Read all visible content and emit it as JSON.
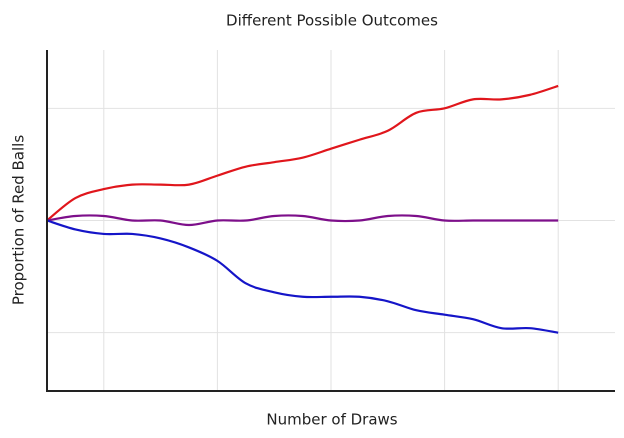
{
  "chart_data": {
    "type": "line",
    "title": "Different Possible Outcomes",
    "x_label": "Number of Draws",
    "y_label": "Proportion of Red Balls",
    "x": [
      0,
      0.5,
      1,
      1.5,
      2,
      2.5,
      3,
      3.5,
      4,
      4.5,
      5,
      5.5,
      6,
      6.5,
      7,
      7.5,
      8,
      8.5,
      9
    ],
    "series": [
      {
        "color": "#e0161c",
        "values": [
          0.5,
          0.55,
          0.57,
          0.58,
          0.58,
          0.58,
          0.6,
          0.62,
          0.63,
          0.64,
          0.66,
          0.68,
          0.7,
          0.74,
          0.75,
          0.77,
          0.77,
          0.78,
          0.8
        ]
      },
      {
        "color": "#7d0f8a",
        "values": [
          0.5,
          0.51,
          0.51,
          0.5,
          0.5,
          0.49,
          0.5,
          0.5,
          0.51,
          0.51,
          0.5,
          0.5,
          0.51,
          0.51,
          0.5,
          0.5,
          0.5,
          0.5,
          0.5
        ]
      },
      {
        "color": "#1515c8",
        "values": [
          0.5,
          0.48,
          0.47,
          0.47,
          0.46,
          0.44,
          0.41,
          0.36,
          0.34,
          0.33,
          0.33,
          0.33,
          0.32,
          0.3,
          0.29,
          0.28,
          0.26,
          0.26,
          0.25
        ]
      }
    ],
    "xlim": [
      0,
      10
    ],
    "xticks": [
      1,
      3,
      5,
      7,
      9
    ],
    "ylim": [
      0.12,
      0.88
    ],
    "yticks": [
      0.25,
      0.5,
      0.75
    ],
    "grid": true
  }
}
